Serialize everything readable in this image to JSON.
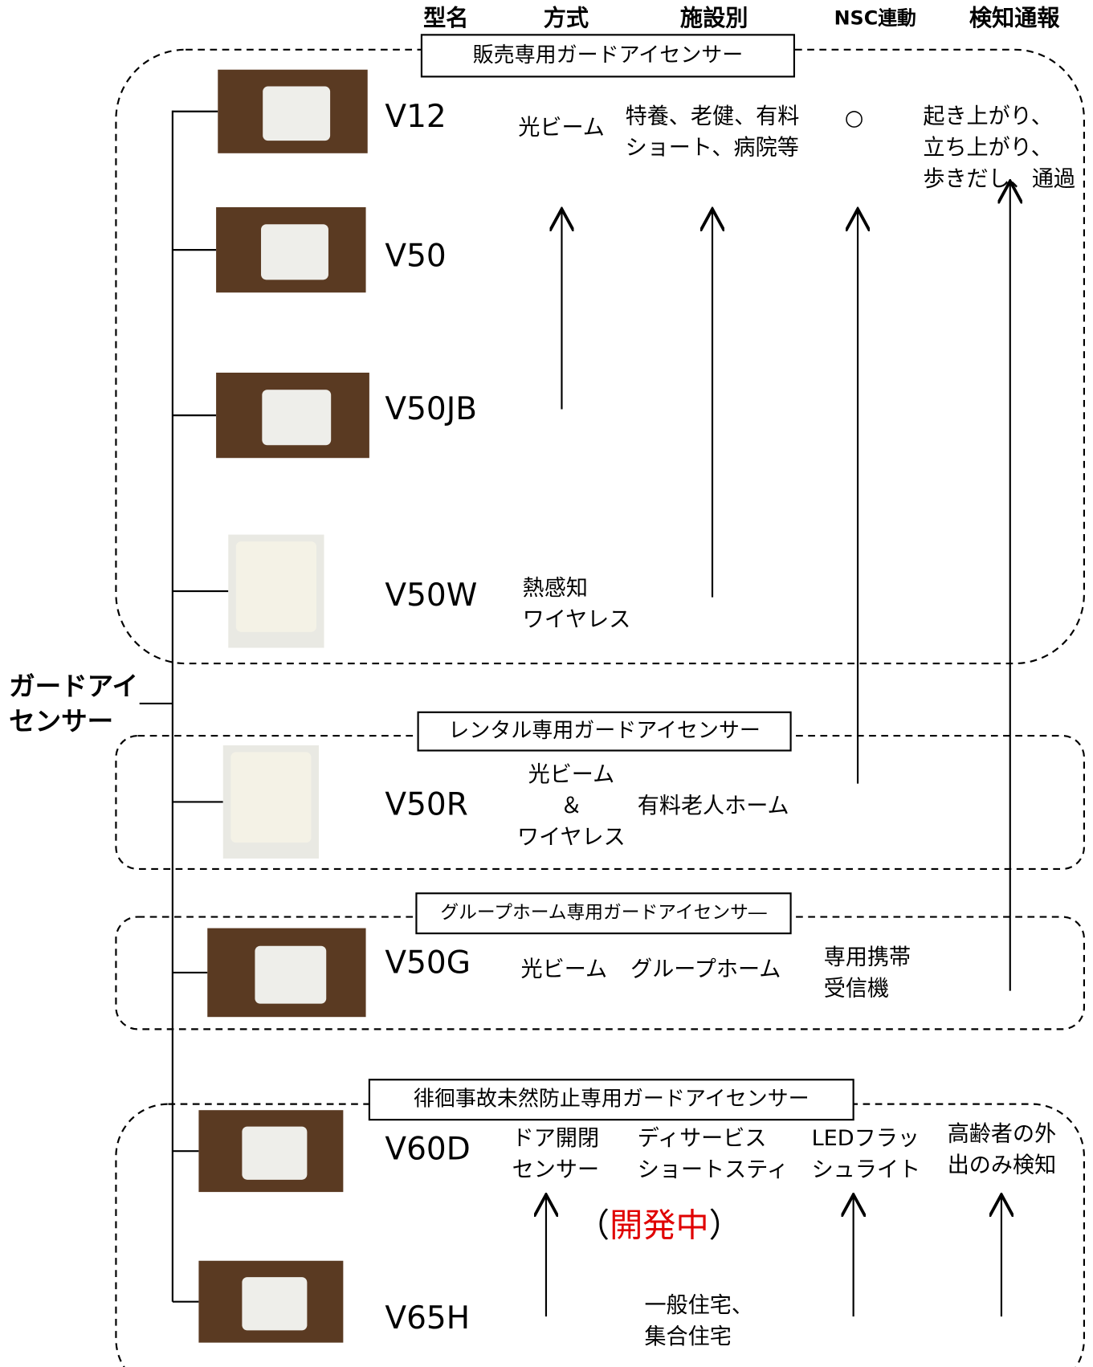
{
  "header": {
    "columns": [
      "型名",
      "方式",
      "施設別",
      "NSC連動",
      "検知通報"
    ]
  },
  "root": {
    "lines": [
      "ガードアイ",
      "センサー"
    ]
  },
  "groups": [
    {
      "title": "販売専用ガードアイセンサー",
      "models": [
        "V12",
        "V50",
        "V50JB",
        "V50W"
      ]
    },
    {
      "title": "レンタル専用ガードアイセンサー",
      "models": [
        "V50R"
      ]
    },
    {
      "title": "グループホーム専用ガードアイセンサ―",
      "models": [
        "V50G"
      ]
    },
    {
      "title": "徘徊事故未然防止専用ガードアイセンサー",
      "models": [
        "V60D",
        "V65H"
      ]
    }
  ],
  "notes": [
    {
      "lines": [
        "光ビーム"
      ]
    },
    {
      "lines": [
        "特養、老健、有料",
        "ショート、病院等"
      ]
    },
    {
      "lines": [
        "○"
      ]
    },
    {
      "lines": [
        "起き上がり、",
        "立ち上がり、",
        "歩きだし、通過"
      ]
    },
    {
      "lines": [
        "熱感知",
        "ワイヤレス"
      ]
    },
    {
      "lines": [
        "光ビーム",
        "＆",
        "ワイヤレス"
      ]
    },
    {
      "lines": [
        "有料老人ホーム"
      ]
    },
    {
      "lines": [
        "光ビーム"
      ]
    },
    {
      "lines": [
        "グループホーム"
      ]
    },
    {
      "lines": [
        "専用携帯",
        "受信機"
      ]
    },
    {
      "lines": [
        "ドア開閉",
        "センサー"
      ]
    },
    {
      "lines": [
        "ディサービス",
        "ショートスティ"
      ]
    },
    {
      "lines": [
        "LEDフラッ",
        "シュライト"
      ]
    },
    {
      "lines": [
        "高齢者の外",
        "出のみ検知"
      ]
    },
    {
      "lines": [
        "一般住宅、",
        "集合住宅"
      ]
    }
  ],
  "status": {
    "open": "（",
    "text": "開発中",
    "close": "）"
  }
}
